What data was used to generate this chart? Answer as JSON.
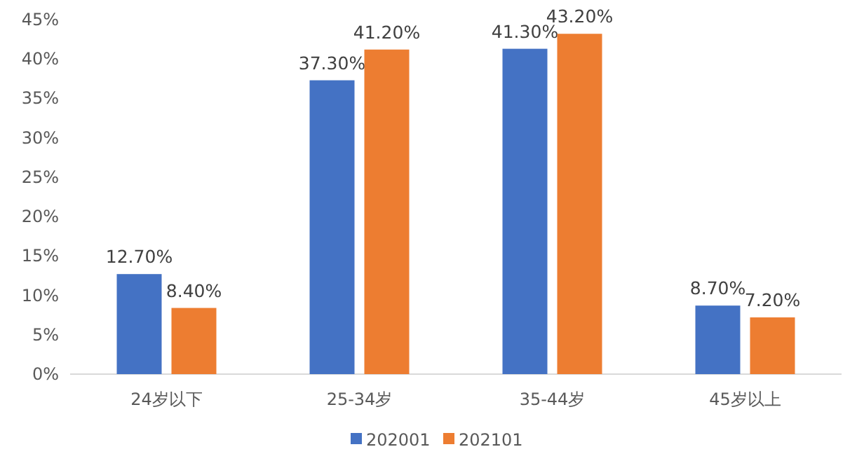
{
  "chart_data": {
    "type": "bar",
    "categories": [
      "24岁以下",
      "25-34岁",
      "35-44岁",
      "45岁以上"
    ],
    "series": [
      {
        "name": "202001",
        "color": "#4472c4",
        "values": [
          12.7,
          37.3,
          41.3,
          8.7
        ],
        "value_labels": [
          "12.70%",
          "37.30%",
          "41.30%",
          "8.70%"
        ]
      },
      {
        "name": "202101",
        "color": "#ed7d31",
        "values": [
          8.4,
          41.2,
          43.2,
          7.2
        ],
        "value_labels": [
          "8.40%",
          "41.20%",
          "43.20%",
          "7.20%"
        ]
      }
    ],
    "ylim": [
      0,
      45
    ],
    "yticks": [
      {
        "value": 0,
        "label": "0%"
      },
      {
        "value": 5,
        "label": "5%"
      },
      {
        "value": 10,
        "label": "10%"
      },
      {
        "value": 15,
        "label": "15%"
      },
      {
        "value": 20,
        "label": "20%"
      },
      {
        "value": 25,
        "label": "25%"
      },
      {
        "value": 30,
        "label": "30%"
      },
      {
        "value": 35,
        "label": "35%"
      },
      {
        "value": 40,
        "label": "40%"
      },
      {
        "value": 45,
        "label": "45%"
      }
    ],
    "legend": "bottom"
  }
}
